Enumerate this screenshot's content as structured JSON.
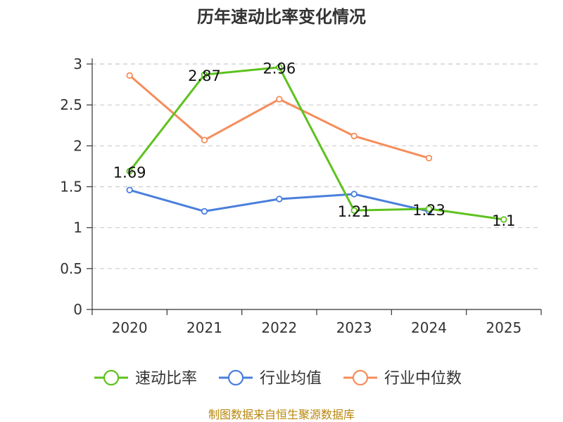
{
  "chart_data": {
    "type": "line",
    "title": "历年速动比率变化情况",
    "categories": [
      "2020",
      "2021",
      "2022",
      "2023",
      "2024",
      "2025"
    ],
    "ylim": [
      0,
      3
    ],
    "yticks": [
      "0",
      "0.5",
      "1",
      "1.5",
      "2",
      "2.5",
      "3"
    ],
    "grid": true,
    "legend_position": "bottom",
    "series": [
      {
        "name": "速动比率",
        "color": "#5dc21e",
        "values": [
          1.69,
          2.87,
          2.96,
          1.21,
          1.23,
          1.1
        ],
        "labels": [
          "1.69",
          "2.87",
          "2.96",
          "1.21",
          "1.23",
          "1.1"
        ]
      },
      {
        "name": "行业均值",
        "color": "#4a7fdc",
        "values": [
          1.46,
          1.2,
          1.35,
          1.41,
          1.2,
          null
        ]
      },
      {
        "name": "行业中位数",
        "color": "#f58d5b",
        "values": [
          2.86,
          2.07,
          2.57,
          2.12,
          1.85,
          null
        ]
      }
    ]
  },
  "source": "制图数据来自恒生聚源数据库"
}
